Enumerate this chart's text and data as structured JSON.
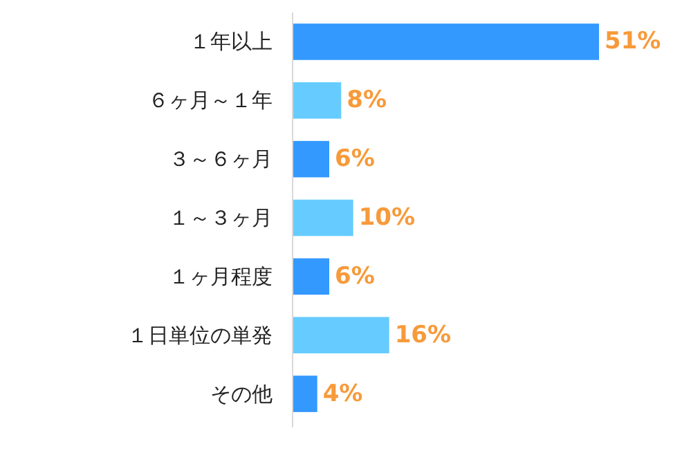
{
  "chart_data": {
    "type": "bar",
    "orientation": "horizontal",
    "categories": [
      "１年以上",
      "６ヶ月～１年",
      "３～６ヶ月",
      "１～３ヶ月",
      "１ヶ月程度",
      "１日単位の単発",
      "その他"
    ],
    "values": [
      51,
      8,
      6,
      10,
      6,
      16,
      4
    ],
    "colors": [
      "#3399ff",
      "#66ccff",
      "#3399ff",
      "#66ccff",
      "#3399ff",
      "#66ccff",
      "#3399ff"
    ],
    "value_labels": [
      "51%",
      "8%",
      "6%",
      "10%",
      "6%",
      "16%",
      "4%"
    ]
  }
}
